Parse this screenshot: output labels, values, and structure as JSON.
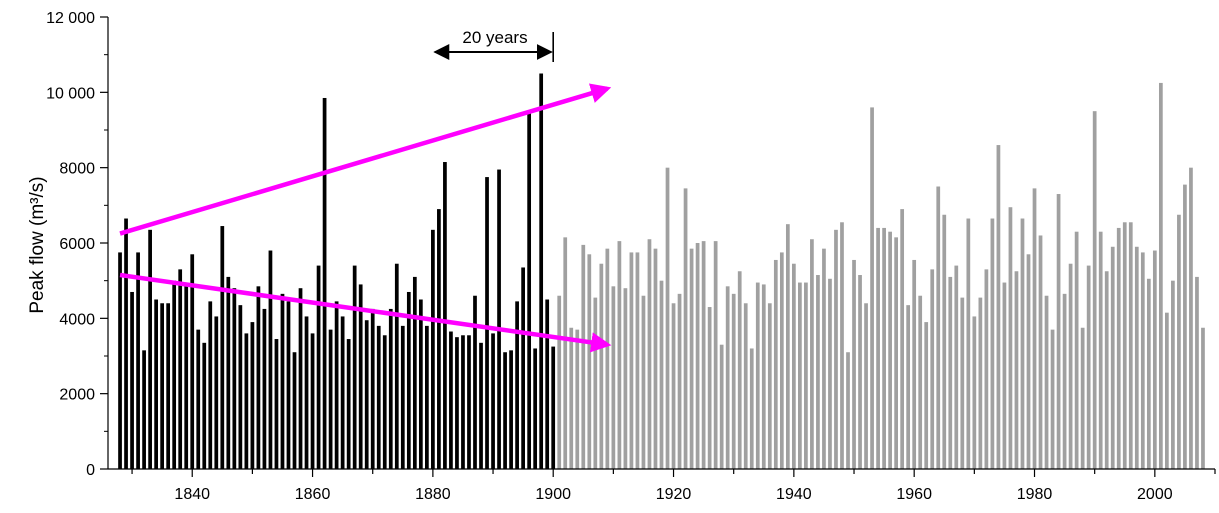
{
  "chart_data": {
    "type": "bar",
    "title": "",
    "xlabel": "",
    "ylabel": "Peak flow (m³/s)",
    "xlim": [
      1826,
      2010
    ],
    "ylim": [
      0,
      12000
    ],
    "x_ticks": [
      1840,
      1860,
      1880,
      1900,
      1920,
      1940,
      1960,
      1980,
      2000
    ],
    "y_ticks": [
      0,
      2000,
      4000,
      6000,
      8000,
      10000,
      12000
    ],
    "x_tick_labels": [
      "1840",
      "1860",
      "1880",
      "1900",
      "1920",
      "1940",
      "1960",
      "1980",
      "2000"
    ],
    "y_tick_labels": [
      "0",
      "2000",
      "4000",
      "6000",
      "8000",
      "10 000",
      "12 000"
    ],
    "grid": false,
    "colors": {
      "historical": "#000000",
      "modern": "#a0a0a0",
      "trend_arrows": "#ff00ff"
    },
    "series": [
      {
        "color": "#000000",
        "x": [
          1828,
          1829,
          1830,
          1831,
          1832,
          1833,
          1834,
          1835,
          1836,
          1837,
          1838,
          1839,
          1840,
          1841,
          1842,
          1843,
          1844,
          1845,
          1846,
          1847,
          1848,
          1849,
          1850,
          1851,
          1852,
          1853,
          1854,
          1855,
          1856,
          1857,
          1858,
          1859,
          1860,
          1861,
          1862,
          1863,
          1864,
          1865,
          1866,
          1867,
          1868,
          1869,
          1870,
          1871,
          1872,
          1873,
          1874,
          1875,
          1876,
          1877,
          1878,
          1879,
          1880,
          1881,
          1882,
          1883,
          1884,
          1885,
          1886,
          1887,
          1888,
          1889,
          1890,
          1891,
          1892,
          1893,
          1894,
          1895,
          1896,
          1897,
          1898,
          1899,
          1900
        ],
        "values": [
          5750,
          6650,
          4700,
          5750,
          3150,
          6350,
          4500,
          4400,
          4400,
          5000,
          5300,
          4900,
          5700,
          3700,
          3350,
          4450,
          4050,
          6450,
          5100,
          4800,
          4350,
          3600,
          3900,
          4850,
          4250,
          5800,
          3450,
          4650,
          4450,
          3100,
          4800,
          4050,
          3600,
          5400,
          9850,
          3700,
          4450,
          4050,
          3450,
          5400,
          4900,
          3950,
          4250,
          3800,
          3550,
          4250,
          5450,
          3800,
          4700,
          5100,
          4500,
          3800,
          6350,
          6900,
          8150,
          3650,
          3500,
          3550,
          3550,
          4600,
          3350,
          7750,
          3600,
          7950,
          3100,
          3150,
          4450,
          5350,
          9450,
          3200,
          10500,
          4500,
          3250
        ]
      },
      {
        "color": "#a0a0a0",
        "x": [
          1901,
          1902,
          1903,
          1904,
          1905,
          1906,
          1907,
          1908,
          1909,
          1910,
          1911,
          1912,
          1913,
          1914,
          1915,
          1916,
          1917,
          1918,
          1919,
          1920,
          1921,
          1922,
          1923,
          1924,
          1925,
          1926,
          1927,
          1928,
          1929,
          1930,
          1931,
          1932,
          1933,
          1934,
          1935,
          1936,
          1937,
          1938,
          1939,
          1940,
          1941,
          1942,
          1943,
          1944,
          1945,
          1946,
          1947,
          1948,
          1949,
          1950,
          1951,
          1952,
          1953,
          1954,
          1955,
          1956,
          1957,
          1958,
          1959,
          1960,
          1961,
          1962,
          1963,
          1964,
          1965,
          1966,
          1967,
          1968,
          1969,
          1970,
          1971,
          1972,
          1973,
          1974,
          1975,
          1976,
          1977,
          1978,
          1979,
          1980,
          1981,
          1982,
          1983,
          1984,
          1985,
          1986,
          1987,
          1988,
          1989,
          1990,
          1991,
          1992,
          1993,
          1994,
          1995,
          1996,
          1997,
          1998,
          1999,
          2000,
          2001,
          2002,
          2003,
          2004,
          2005,
          2006,
          2007,
          2008
        ],
        "values": [
          4600,
          6150,
          3750,
          3700,
          5950,
          5700,
          4550,
          5450,
          5850,
          4850,
          6050,
          4800,
          5750,
          5750,
          4600,
          6100,
          5850,
          5000,
          8000,
          4400,
          4650,
          7450,
          5850,
          6000,
          6050,
          4300,
          6050,
          3300,
          4850,
          4650,
          5250,
          4400,
          3200,
          4950,
          4900,
          4400,
          5550,
          5750,
          6500,
          5450,
          4950,
          4950,
          6100,
          5150,
          5850,
          5050,
          6350,
          6550,
          3100,
          5550,
          5150,
          4400,
          9600,
          6400,
          6400,
          6300,
          6150,
          6900,
          4350,
          5550,
          4600,
          3900,
          5300,
          7500,
          6750,
          5100,
          5400,
          4550,
          6650,
          4050,
          4550,
          5300,
          6650,
          8600,
          4950,
          6950,
          5250,
          6650,
          5700,
          7450,
          6200,
          4600,
          3700,
          7300,
          4650,
          5450,
          6300,
          3750,
          5400,
          9500,
          6300,
          5250,
          5900,
          6400,
          6550,
          6550,
          5900,
          5750,
          5050,
          5800,
          10250,
          4150,
          5000,
          6750,
          7550,
          8000,
          5100,
          3750
        ]
      }
    ],
    "annotations": {
      "bracket_label": "20 years",
      "bracket_range": [
        1880,
        1900
      ],
      "upper_trend_arrow": {
        "from": [
          1828,
          6250
        ],
        "to": [
          1909,
          10100
        ]
      },
      "lower_trend_arrow": {
        "from": [
          1828,
          5150
        ],
        "to": [
          1909,
          3300
        ]
      }
    }
  }
}
